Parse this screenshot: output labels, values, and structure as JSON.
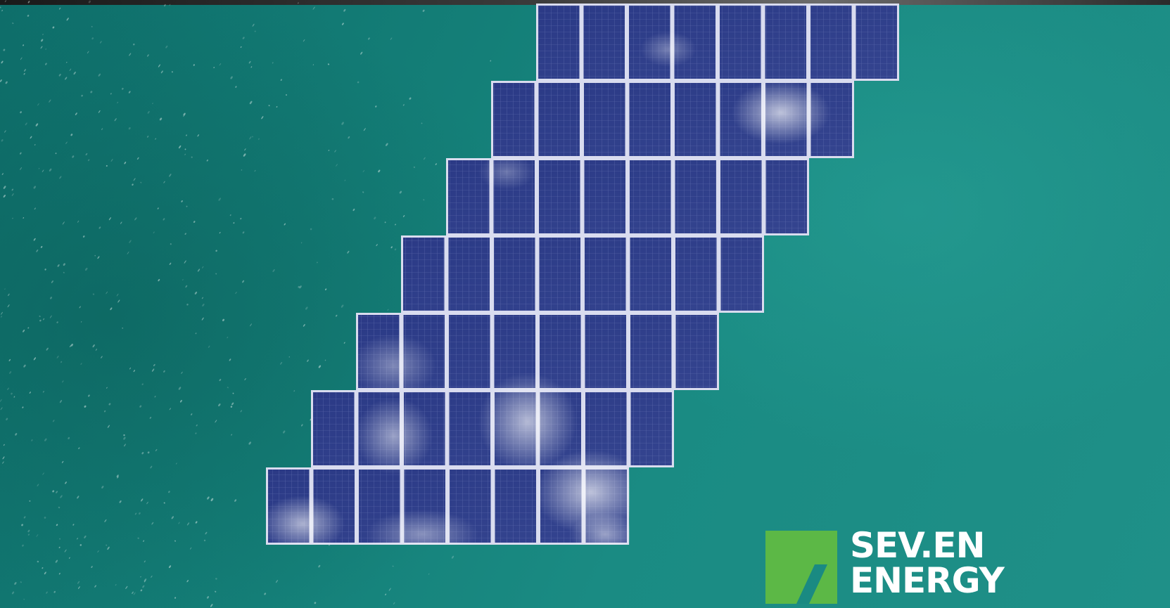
{
  "scene": {
    "description_kind": "aerial-photo",
    "colors": {
      "water": "#1b8a82",
      "panel": "#2e3d85",
      "panel_frame": "#d9dcef",
      "logo_green": "#5cb846",
      "logo_text": "#ffffff"
    },
    "solar_array": {
      "rows": 7,
      "panels_per_row": 8
    }
  },
  "logo": {
    "line1": "SEV.EN",
    "line2": "ENERGY"
  }
}
